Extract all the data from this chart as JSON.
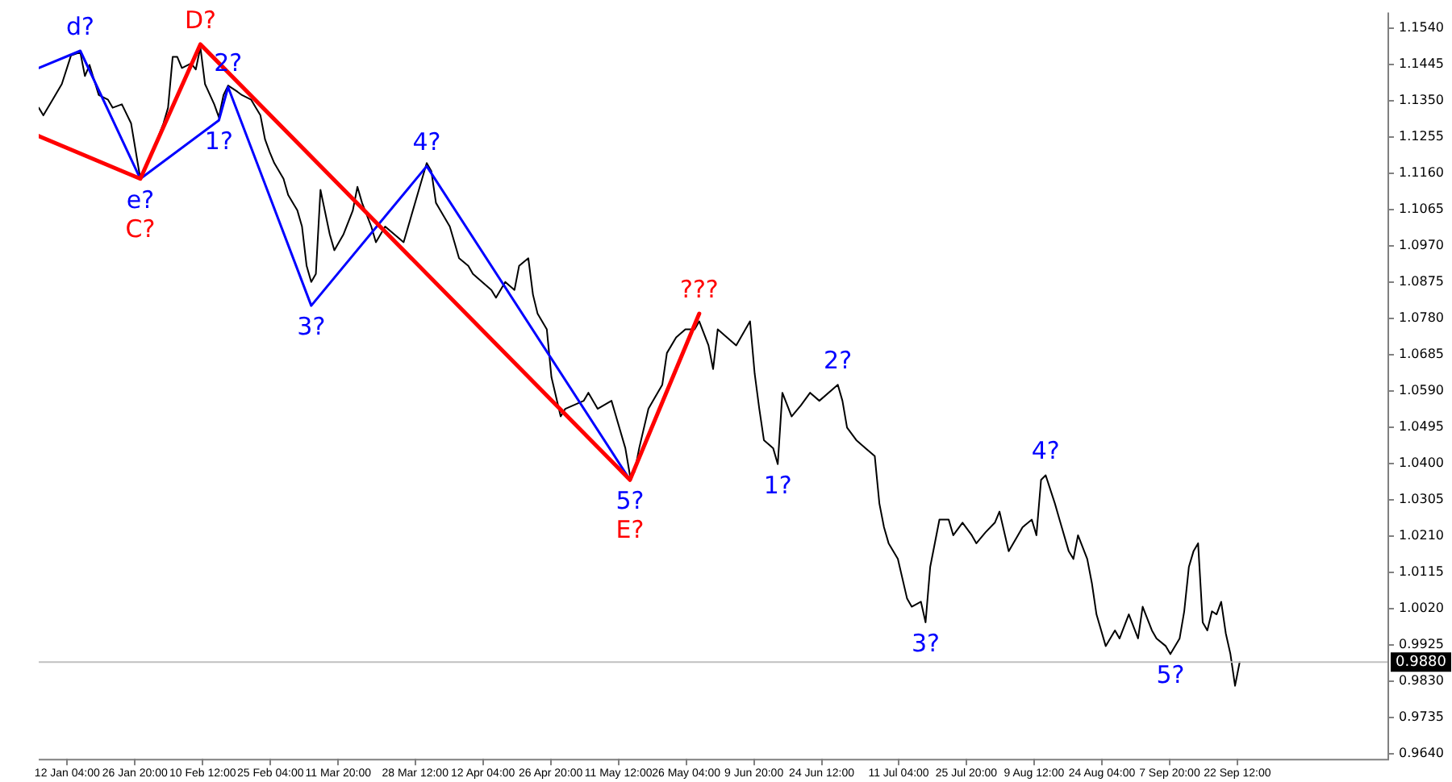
{
  "chart_data": {
    "type": "line",
    "marker": "none",
    "line_style": "solid",
    "grid": false,
    "legend": false,
    "xlim": [
      "--01-06",
      "--10-25"
    ],
    "ylim": [
      0.9627,
      1.158
    ],
    "xticks": [
      {
        "value": "--01-12T04:00",
        "label": "12 Jan 04:00"
      },
      {
        "value": "--01-26T20:00",
        "label": "26 Jan 20:00"
      },
      {
        "value": "--02-10T12:00",
        "label": "10 Feb 12:00"
      },
      {
        "value": "--02-25T04:00",
        "label": "25 Feb 04:00"
      },
      {
        "value": "--03-11T20:00",
        "label": "11 Mar 20:00"
      },
      {
        "value": "--03-28T12:00",
        "label": "28 Mar 12:00"
      },
      {
        "value": "--04-12T04:00",
        "label": "12 Apr 04:00"
      },
      {
        "value": "--04-26T20:00",
        "label": "26 Apr 20:00"
      },
      {
        "value": "--05-11T12:00",
        "label": "11 May 12:00"
      },
      {
        "value": "--05-26T04:00",
        "label": "26 May 04:00"
      },
      {
        "value": "--06-09T20:00",
        "label": "9 Jun 20:00"
      },
      {
        "value": "--06-24T12:00",
        "label": "24 Jun 12:00"
      },
      {
        "value": "--07-11T04:00",
        "label": "11 Jul 04:00"
      },
      {
        "value": "--07-25T20:00",
        "label": "25 Jul 20:00"
      },
      {
        "value": "--08-09T12:00",
        "label": "9 Aug 12:00"
      },
      {
        "value": "--08-24T04:00",
        "label": "24 Aug 04:00"
      },
      {
        "value": "--09-07T20:00",
        "label": "7 Sep 20:00"
      },
      {
        "value": "--09-22T12:00",
        "label": "22 Sep 12:00"
      }
    ],
    "yticks": [
      {
        "value": 0.964,
        "label": "0.9640"
      },
      {
        "value": 0.9735,
        "label": "0.9735"
      },
      {
        "value": 0.983,
        "label": "0.9830"
      },
      {
        "value": 0.9925,
        "label": "0.9925"
      },
      {
        "value": 1.002,
        "label": "1.0020"
      },
      {
        "value": 1.0115,
        "label": "1.0115"
      },
      {
        "value": 1.021,
        "label": "1.0210"
      },
      {
        "value": 1.0305,
        "label": "1.0305"
      },
      {
        "value": 1.04,
        "label": "1.0400"
      },
      {
        "value": 1.0495,
        "label": "1.0495"
      },
      {
        "value": 1.059,
        "label": "1.0590"
      },
      {
        "value": 1.0685,
        "label": "1.0685"
      },
      {
        "value": 1.078,
        "label": "1.0780"
      },
      {
        "value": 1.0875,
        "label": "1.0875"
      },
      {
        "value": 1.097,
        "label": "1.0970"
      },
      {
        "value": 1.1065,
        "label": "1.1065"
      },
      {
        "value": 1.116,
        "label": "1.1160"
      },
      {
        "value": 1.1255,
        "label": "1.1255"
      },
      {
        "value": 1.135,
        "label": "1.1350"
      },
      {
        "value": 1.1445,
        "label": "1.1445"
      },
      {
        "value": 1.154,
        "label": "1.1540"
      }
    ],
    "series": [
      {
        "color": "#000000",
        "x": [
          "--01-06",
          "--01-07",
          "--01-09",
          "--01-11",
          "--01-13",
          "--01-15",
          "--01-16",
          "--01-17",
          "--01-19",
          "--01-21",
          "--01-22",
          "--01-24",
          "--01-26",
          "--01-28",
          "--01-29",
          "--01-31",
          "--02-02",
          "--02-03",
          "--02-04",
          "--02-05",
          "--02-06",
          "--02-08",
          "--02-09",
          "--02-10",
          "--02-11",
          "--02-13",
          "--02-14",
          "--02-15",
          "--02-16",
          "--02-18",
          "--02-19",
          "--02-21",
          "--02-22",
          "--02-23",
          "--02-24",
          "--02-25",
          "--02-26",
          "--02-28",
          "--03-01",
          "--03-03",
          "--03-04",
          "--03-05",
          "--03-06",
          "--03-07",
          "--03-08",
          "--03-10",
          "--03-11",
          "--03-13",
          "--03-15",
          "--03-16",
          "--03-17",
          "--03-19",
          "--03-20",
          "--03-22",
          "--03-26",
          "--03-30",
          "--03-31",
          "--04-01",
          "--04-02",
          "--04-05",
          "--04-06",
          "--04-07",
          "--04-09",
          "--04-10",
          "--04-14",
          "--04-15",
          "--04-17",
          "--04-19",
          "--04-20",
          "--04-22",
          "--04-23",
          "--04-24",
          "--04-26",
          "--04-27",
          "--04-29",
          "--04-30",
          "--05-04",
          "--05-05",
          "--05-07",
          "--05-10",
          "--05-13",
          "--05-14",
          "--05-15",
          "--05-16",
          "--05-18",
          "--05-19",
          "--05-21",
          "--05-22",
          "--05-24",
          "--05-26",
          "--05-28",
          "--05-29",
          "--05-31",
          "--06-01",
          "--06-02",
          "--06-04",
          "--06-06",
          "--06-08",
          "--06-09",
          "--06-10",
          "--06-11",
          "--06-12",
          "--06-14",
          "--06-15",
          "--06-16",
          "--06-18",
          "--06-20",
          "--06-22",
          "--06-24",
          "--06-28",
          "--06-29",
          "--06-30",
          "--07-02",
          "--07-04",
          "--07-06",
          "--07-07",
          "--07-08",
          "--07-09",
          "--07-11",
          "--07-13",
          "--07-14",
          "--07-16",
          "--07-17",
          "--07-18",
          "--07-20",
          "--07-22",
          "--07-23",
          "--07-25",
          "--07-27",
          "--07-28",
          "--07-30",
          "--08-01",
          "--08-02",
          "--08-04",
          "--08-06",
          "--08-07",
          "--08-09",
          "--08-10",
          "--08-11",
          "--08-12",
          "--08-14",
          "--08-15",
          "--08-17",
          "--08-18",
          "--08-19",
          "--08-21",
          "--08-22",
          "--08-23",
          "--08-25",
          "--08-27",
          "--08-28",
          "--08-30",
          "--09-01",
          "--09-02",
          "--09-04",
          "--09-05",
          "--09-07",
          "--09-08",
          "--09-10",
          "--09-11",
          "--09-12",
          "--09-13",
          "--09-14",
          "--09-15",
          "--09-16",
          "--09-17",
          "--09-18",
          "--09-19",
          "--09-20",
          "--09-21",
          "--09-22",
          "--09-23"
        ],
        "values": [
          1.1331,
          1.1311,
          1.1352,
          1.1393,
          1.1468,
          1.1476,
          1.1414,
          1.1443,
          1.1364,
          1.1352,
          1.1331,
          1.134,
          1.129,
          1.1145,
          1.1174,
          1.1228,
          1.129,
          1.1331,
          1.1464,
          1.1464,
          1.1435,
          1.1447,
          1.1431,
          1.1489,
          1.1393,
          1.134,
          1.1306,
          1.1364,
          1.1389,
          1.1373,
          1.1364,
          1.1352,
          1.1331,
          1.1311,
          1.1248,
          1.1215,
          1.1186,
          1.1145,
          1.1103,
          1.1062,
          1.102,
          1.0917,
          1.0875,
          1.0896,
          1.1116,
          1.1,
          1.0958,
          1.1,
          1.1062,
          1.1124,
          1.1082,
          1.102,
          1.0979,
          1.102,
          1.0979,
          1.1145,
          1.1186,
          1.1165,
          1.1082,
          1.102,
          1.0979,
          1.0937,
          1.0917,
          1.0896,
          1.0854,
          1.0834,
          1.0875,
          1.0854,
          1.0917,
          1.0937,
          1.0842,
          1.0792,
          1.0751,
          1.0626,
          1.0523,
          1.0543,
          1.0564,
          1.0585,
          1.0543,
          1.0564,
          1.044,
          1.0369,
          1.0378,
          1.044,
          1.0543,
          1.0564,
          1.0606,
          1.0689,
          1.073,
          1.0751,
          1.0751,
          1.0772,
          1.0709,
          1.0647,
          1.0751,
          1.073,
          1.0709,
          1.0751,
          1.0772,
          1.0635,
          1.0543,
          1.0461,
          1.044,
          1.0398,
          1.0585,
          1.0523,
          1.0552,
          1.0585,
          1.0564,
          1.0606,
          1.0564,
          1.0494,
          1.0461,
          1.044,
          1.0419,
          1.0295,
          1.0233,
          1.0191,
          1.015,
          1.0046,
          1.0025,
          1.0038,
          0.9984,
          1.0129,
          1.0253,
          1.0253,
          1.0212,
          1.0245,
          1.0212,
          1.0191,
          1.022,
          1.0245,
          1.0274,
          1.017,
          1.0212,
          1.0233,
          1.0253,
          1.0212,
          1.0357,
          1.0369,
          1.0295,
          1.0253,
          1.017,
          1.015,
          1.0212,
          1.015,
          1.0087,
          1.0005,
          0.9922,
          0.9963,
          0.9942,
          1.0005,
          0.9942,
          1.0025,
          0.9963,
          0.9942,
          0.9922,
          0.9901,
          0.9942,
          1.0013,
          1.0129,
          1.017,
          1.0191,
          0.9984,
          0.9963,
          1.0013,
          1.0005,
          1.0038,
          0.9955,
          0.9901,
          0.9818,
          0.988
        ]
      },
      {
        "color": "#0000ff",
        "x": [
          "--01-06",
          "--01-15",
          "--01-28",
          "--02-14",
          "--02-16",
          "--03-06",
          "--03-31",
          "--05-14"
        ],
        "values": [
          1.1435,
          1.148,
          1.1145,
          1.1298,
          1.1385,
          1.0813,
          1.1178,
          1.0357
        ]
      },
      {
        "color": "#ff0000",
        "x": [
          "--01-06",
          "--01-28",
          "--02-10",
          "--05-14",
          "--05-29"
        ],
        "values": [
          1.1257,
          1.1145,
          1.1497,
          1.0357,
          1.0792
        ]
      }
    ],
    "ref_lines": [
      {
        "axis": "y",
        "value": 0.988,
        "label": "0.9880",
        "color": "#c0c0c0"
      }
    ],
    "annotations": [
      {
        "text": "d?",
        "x": "--01-15",
        "y": 1.148
      },
      {
        "text": "D?",
        "x": "--02-10",
        "y": 1.1497
      },
      {
        "text": "2?",
        "x": "--02-16",
        "y": 1.1385
      },
      {
        "text": "1?",
        "x": "--02-14",
        "y": 1.1298
      },
      {
        "text": "e?",
        "x": "--01-28",
        "y": 1.1145
      },
      {
        "text": "C?",
        "x": "--01-28",
        "y": 1.1145
      },
      {
        "text": "4?",
        "x": "--03-31",
        "y": 1.1178
      },
      {
        "text": "3?",
        "x": "--03-06",
        "y": 1.0813
      },
      {
        "text": "???",
        "x": "--05-29",
        "y": 1.0792
      },
      {
        "text": "5?",
        "x": "--05-14",
        "y": 1.0357
      },
      {
        "text": "E?",
        "x": "--05-14",
        "y": 1.0357
      },
      {
        "text": "1?",
        "x": "--06-15",
        "y": 1.0398
      },
      {
        "text": "2?",
        "x": "--06-28",
        "y": 1.0606
      },
      {
        "text": "3?",
        "x": "--07-17",
        "y": 0.9984
      },
      {
        "text": "4?",
        "x": "--08-12",
        "y": 1.0369
      },
      {
        "text": "5?",
        "x": "--09-08",
        "y": 0.9901
      }
    ]
  }
}
